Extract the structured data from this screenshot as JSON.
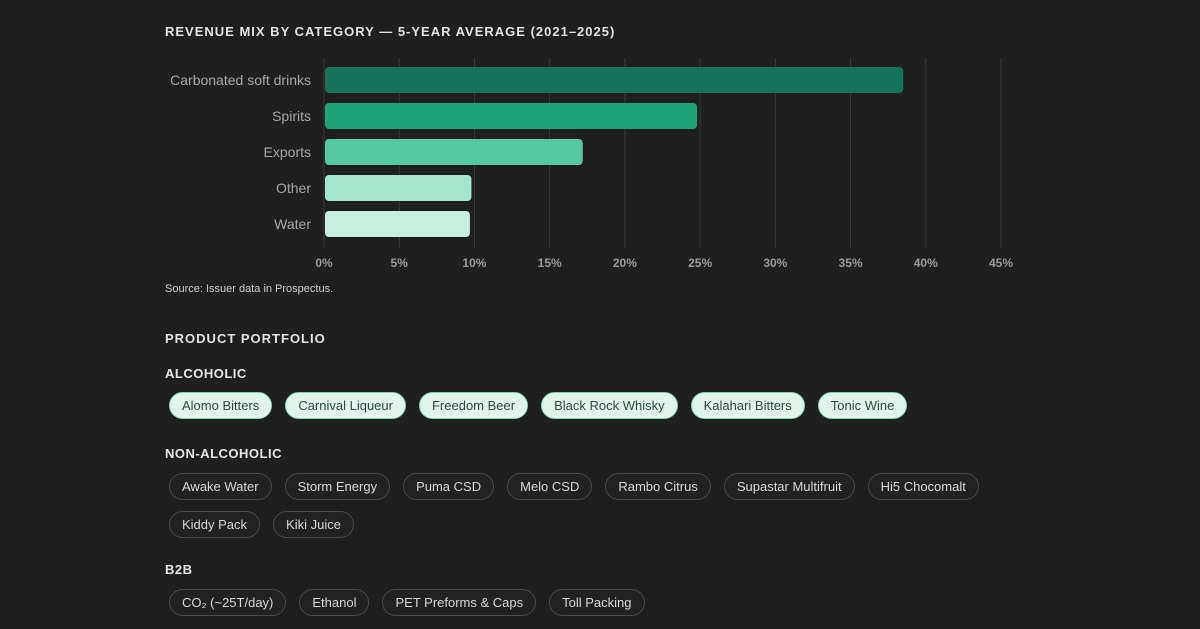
{
  "chart_data": {
    "type": "bar",
    "orientation": "horizontal",
    "title": "REVENUE MIX BY CATEGORY — 5-YEAR AVERAGE (2021–2025)",
    "categories": [
      "Carbonated soft drinks",
      "Spirits",
      "Exports",
      "Other",
      "Water"
    ],
    "values": [
      38.5,
      24.8,
      17.2,
      9.8,
      9.7
    ],
    "bar_colors": [
      "#16735a",
      "#1ea37a",
      "#55c9a1",
      "#a3e5cd",
      "#c7eedf"
    ],
    "x_ticks": [
      "0%",
      "5%",
      "10%",
      "15%",
      "20%",
      "25%",
      "30%",
      "35%",
      "40%",
      "45%"
    ],
    "xlim": [
      0,
      45
    ],
    "grid": true,
    "source": "Source: Issuer data in Prospectus."
  },
  "portfolio": {
    "title": "PRODUCT PORTFOLIO",
    "groups": {
      "alcoholic": {
        "title": "ALCOHOLIC",
        "items": [
          "Alomo Bitters",
          "Carnival Liqueur",
          "Freedom Beer",
          "Black Rock Whisky",
          "Kalahari Bitters",
          "Tonic Wine"
        ]
      },
      "non_alcoholic": {
        "title": "NON-ALCOHOLIC",
        "items": [
          "Awake Water",
          "Storm Energy",
          "Puma CSD",
          "Melo CSD",
          "Rambo Citrus",
          "Supastar Multifruit",
          "Hi5 Chocomalt",
          "Kiddy Pack",
          "Kiki Juice"
        ]
      },
      "b2b": {
        "title": "B2B",
        "items": [
          "CO₂ (~25T/day)",
          "Ethanol",
          "PET Preforms & Caps",
          "Toll Packing"
        ]
      }
    }
  }
}
